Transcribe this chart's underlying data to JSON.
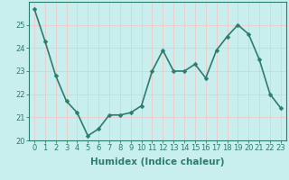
{
  "x": [
    0,
    1,
    2,
    3,
    4,
    5,
    6,
    7,
    8,
    9,
    10,
    11,
    12,
    13,
    14,
    15,
    16,
    17,
    18,
    19,
    20,
    21,
    22,
    23
  ],
  "y": [
    25.7,
    24.3,
    22.8,
    21.7,
    21.2,
    20.2,
    20.5,
    21.1,
    21.1,
    21.2,
    21.5,
    23.0,
    23.9,
    23.0,
    23.0,
    23.3,
    22.7,
    23.9,
    24.5,
    25.0,
    24.6,
    23.5,
    22.0,
    21.4
  ],
  "xlabel": "Humidex (Indice chaleur)",
  "ylim": [
    20,
    26
  ],
  "xlim": [
    -0.5,
    23.5
  ],
  "yticks": [
    20,
    21,
    22,
    23,
    24,
    25
  ],
  "xticks": [
    0,
    1,
    2,
    3,
    4,
    5,
    6,
    7,
    8,
    9,
    10,
    11,
    12,
    13,
    14,
    15,
    16,
    17,
    18,
    19,
    20,
    21,
    22,
    23
  ],
  "line_color": "#2d7d6e",
  "marker_color": "#2d7d6e",
  "bg_color": "#c8eeee",
  "grid_color": "#f0c8c8",
  "axis_color": "#2d7d6e",
  "tick_label_color": "#2d7d6e",
  "xlabel_color": "#2d7d6e",
  "xlabel_fontsize": 7.5,
  "tick_fontsize": 6.0,
  "line_width": 1.2,
  "marker_size": 2.5
}
